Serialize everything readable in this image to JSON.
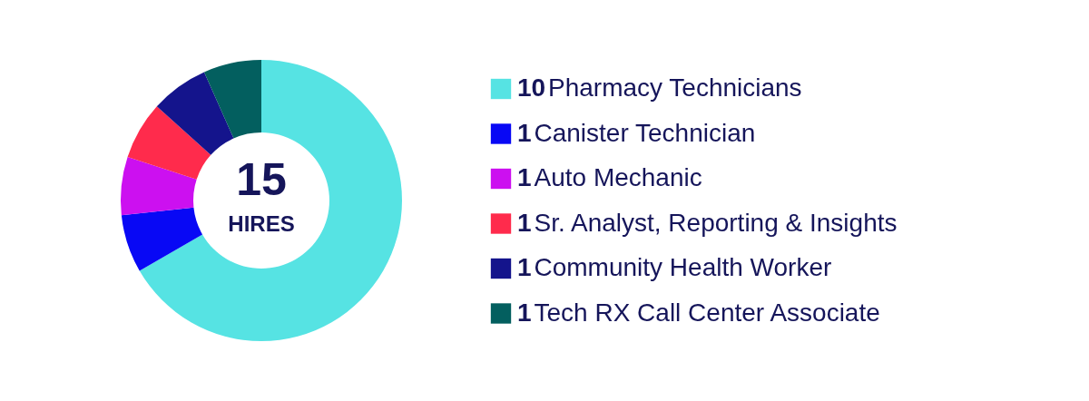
{
  "chart_data": {
    "type": "donut",
    "categories": [
      "Pharmacy Technicians",
      "Canister Technician",
      "Auto Mechanic",
      "Sr. Analyst, Reporting & Insights",
      "Community Health Worker",
      "Tech RX Call Center Associate"
    ],
    "values": [
      10,
      1,
      1,
      1,
      1,
      1
    ],
    "colors": [
      "#56e3e3",
      "#0808f5",
      "#cc10f0",
      "#ff2b4c",
      "#14148c",
      "#035f5f"
    ],
    "data_labels": true,
    "legend": "right",
    "annotations": [
      "15",
      "HIRES"
    ]
  }
}
